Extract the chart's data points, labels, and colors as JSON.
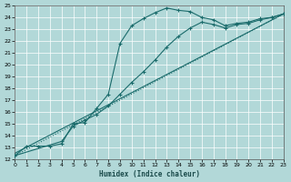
{
  "xlabel": "Humidex (Indice chaleur)",
  "background_color": "#b2d8d8",
  "grid_color": "#9ecece",
  "line_color": "#1a6b6b",
  "xlim": [
    0,
    23
  ],
  "ylim": [
    12,
    25
  ],
  "xticks": [
    0,
    1,
    2,
    3,
    4,
    5,
    6,
    7,
    8,
    9,
    10,
    11,
    12,
    13,
    14,
    15,
    16,
    17,
    18,
    19,
    20,
    21,
    22,
    23
  ],
  "yticks": [
    12,
    13,
    14,
    15,
    16,
    17,
    18,
    19,
    20,
    21,
    22,
    23,
    24,
    25
  ],
  "curve1_x": [
    0,
    1,
    2,
    3,
    4,
    5,
    6,
    7,
    8,
    9,
    10,
    11,
    12,
    13,
    14,
    15,
    16,
    17,
    18,
    19,
    20,
    21,
    22,
    23
  ],
  "curve1_y": [
    12.3,
    13.1,
    13.1,
    13.1,
    13.3,
    15.0,
    15.1,
    16.3,
    17.5,
    21.8,
    23.3,
    23.9,
    24.4,
    24.8,
    24.6,
    24.5,
    24.0,
    23.8,
    23.3,
    23.5,
    23.6,
    23.9,
    24.0,
    24.3
  ],
  "curve2_x": [
    0,
    4,
    5,
    6,
    7,
    8,
    9,
    10,
    11,
    12,
    13,
    14,
    15,
    16,
    17,
    18,
    19,
    20,
    21,
    22,
    23
  ],
  "curve2_y": [
    12.3,
    13.5,
    14.8,
    15.3,
    15.8,
    16.5,
    17.5,
    18.5,
    19.4,
    20.4,
    21.5,
    22.4,
    23.1,
    23.6,
    23.4,
    23.1,
    23.4,
    23.5,
    23.8,
    24.0,
    24.3
  ],
  "line3_x": [
    0,
    23
  ],
  "line3_y": [
    12.3,
    24.3
  ],
  "line4_x": [
    0,
    23
  ],
  "line4_y": [
    12.5,
    24.3
  ]
}
